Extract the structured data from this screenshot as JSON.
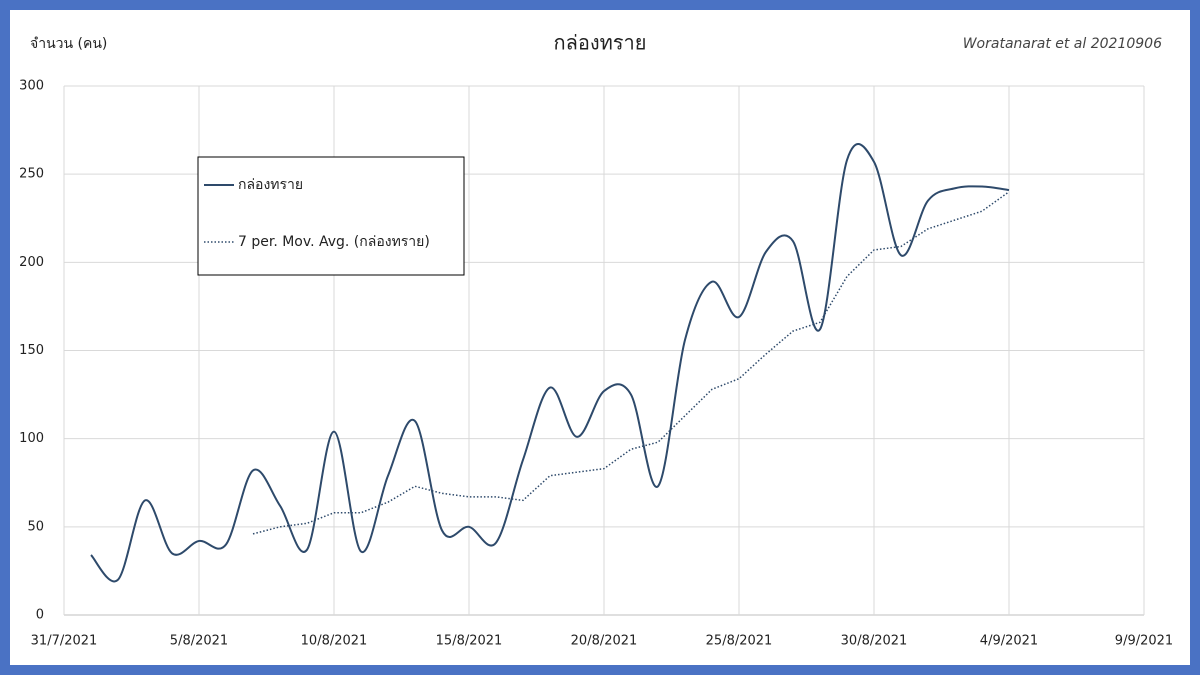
{
  "chart_data": {
    "type": "line",
    "title": "กล่องทราย",
    "y_label": "จำนวน (คน)",
    "annotation": "Woratanarat et al 20210906",
    "x": [
      "2021-08-01",
      "2021-08-02",
      "2021-08-03",
      "2021-08-04",
      "2021-08-05",
      "2021-08-06",
      "2021-08-07",
      "2021-08-08",
      "2021-08-09",
      "2021-08-10",
      "2021-08-11",
      "2021-08-12",
      "2021-08-13",
      "2021-08-14",
      "2021-08-15",
      "2021-08-16",
      "2021-08-17",
      "2021-08-18",
      "2021-08-19",
      "2021-08-20",
      "2021-08-21",
      "2021-08-22",
      "2021-08-23",
      "2021-08-24",
      "2021-08-25",
      "2021-08-26",
      "2021-08-27",
      "2021-08-28",
      "2021-08-29",
      "2021-08-30",
      "2021-08-31",
      "2021-09-01",
      "2021-09-02",
      "2021-09-03",
      "2021-09-04"
    ],
    "series": [
      {
        "name": "กล่องทราย",
        "color": "#2e4a6b",
        "style": "solid",
        "values": [
          34,
          20,
          65,
          35,
          42,
          40,
          82,
          62,
          37,
          104,
          36,
          79,
          110,
          48,
          50,
          41,
          88,
          129,
          101,
          127,
          125,
          73,
          156,
          189,
          169,
          206,
          212,
          162,
          258,
          257,
          204,
          235,
          242,
          243,
          241
        ]
      },
      {
        "name": "7 per. Mov. Avg. (กล่องทราย)",
        "color": "#2e4a6b",
        "style": "dotted",
        "values": [
          null,
          null,
          null,
          null,
          null,
          null,
          46,
          50,
          52,
          58,
          58,
          64,
          73,
          69,
          67,
          67,
          65,
          79,
          81,
          83,
          94,
          98,
          113,
          128,
          134,
          148,
          161,
          166,
          192,
          207,
          209,
          219,
          224,
          229,
          240
        ]
      }
    ],
    "xlim": [
      "2021-07-31",
      "2021-09-09"
    ],
    "xticks": [
      {
        "value": "2021-07-31",
        "label": "31/7/2021"
      },
      {
        "value": "2021-08-05",
        "label": "5/8/2021"
      },
      {
        "value": "2021-08-10",
        "label": "10/8/2021"
      },
      {
        "value": "2021-08-15",
        "label": "15/8/2021"
      },
      {
        "value": "2021-08-20",
        "label": "20/8/2021"
      },
      {
        "value": "2021-08-25",
        "label": "25/8/2021"
      },
      {
        "value": "2021-08-30",
        "label": "30/8/2021"
      },
      {
        "value": "2021-09-04",
        "label": "4/9/2021"
      },
      {
        "value": "2021-09-09",
        "label": "9/9/2021"
      }
    ],
    "ylim": [
      0,
      300
    ],
    "yticks": [
      0,
      50,
      100,
      150,
      200,
      250,
      300
    ],
    "grid": true,
    "legend": "upper-left"
  }
}
